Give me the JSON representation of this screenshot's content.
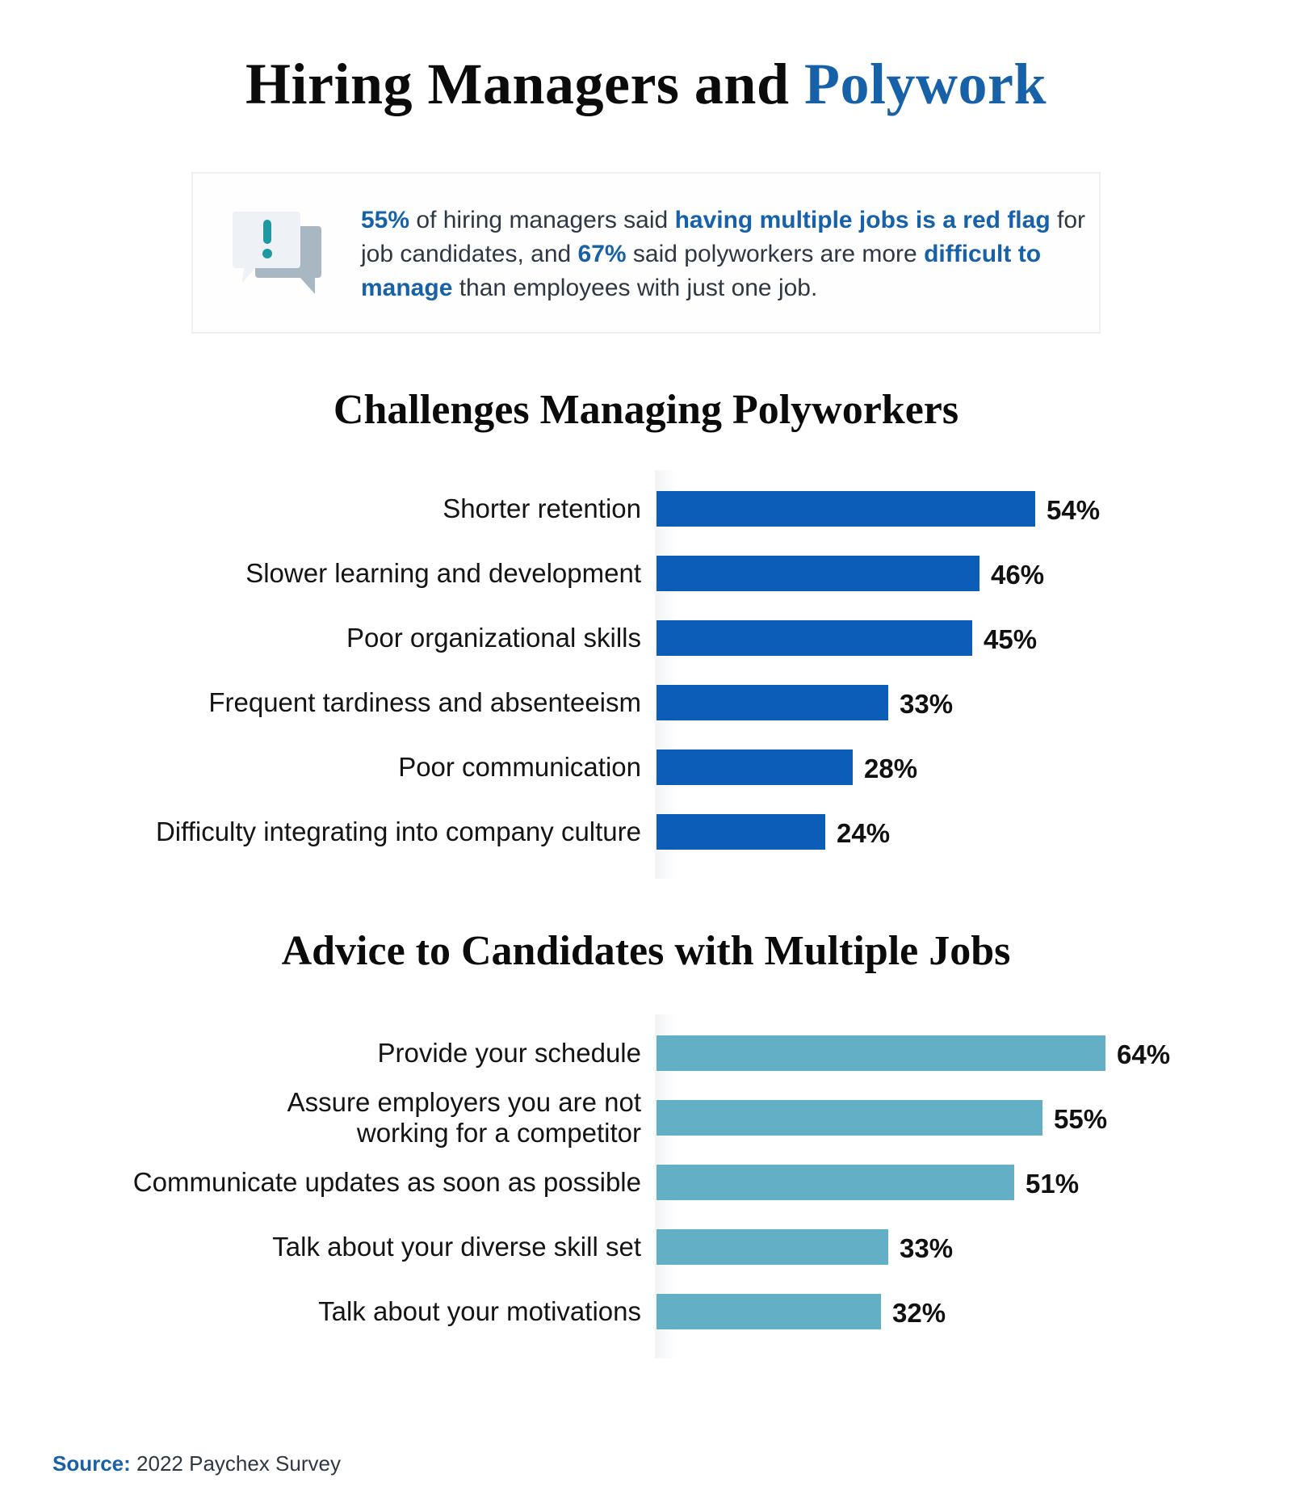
{
  "header": {
    "title_main": "Hiring Managers and ",
    "title_accent": "Polywork"
  },
  "summary": {
    "icon": "speech-bubbles-exclamation-icon",
    "segments": [
      {
        "text": "55%",
        "highlight": true
      },
      {
        "text": " of hiring managers said ",
        "highlight": false
      },
      {
        "text": "having multiple jobs is a red flag",
        "highlight": true
      },
      {
        "text": " for job candidates, and ",
        "highlight": false
      },
      {
        "text": "67%",
        "highlight": true
      },
      {
        "text": " said polyworkers are more ",
        "highlight": false
      },
      {
        "text": "difficult to manage",
        "highlight": true
      },
      {
        "text": " than employees with just one job.",
        "highlight": false
      }
    ]
  },
  "colors": {
    "accent_blue": "#1761A9",
    "bar_blue": "#0B5DB8",
    "bar_teal": "#62AFC6",
    "icon_teal": "#1D9AA0",
    "icon_grey": "#A9B7C3"
  },
  "chart_data": [
    {
      "type": "bar",
      "orientation": "horizontal",
      "title": "Challenges Managing Polyworkers",
      "categories": [
        "Shorter retention",
        "Slower learning and development",
        "Poor organizational skills",
        "Frequent tardiness and absenteeism",
        "Poor communication",
        "Difficulty integrating into company culture"
      ],
      "values": [
        54,
        46,
        45,
        33,
        28,
        24
      ],
      "value_labels": [
        "54%",
        "46%",
        "45%",
        "33%",
        "28%",
        "24%"
      ],
      "unit": "%",
      "color": "#0B5DB8",
      "xlabel": "",
      "ylabel": "",
      "grid": false,
      "legend": null
    },
    {
      "type": "bar",
      "orientation": "horizontal",
      "title": "Advice to Candidates with Multiple Jobs",
      "categories": [
        "Provide your schedule",
        "Assure employers you are not working for a competitor",
        "Communicate updates as soon as possible",
        "Talk about your diverse skill set",
        "Talk about your motivations"
      ],
      "category_lines": [
        [
          "Provide your schedule"
        ],
        [
          "Assure employers you are not",
          "working for a competitor"
        ],
        [
          "Communicate updates as soon as possible"
        ],
        [
          "Talk about your diverse skill set"
        ],
        [
          "Talk about your motivations"
        ]
      ],
      "values": [
        64,
        55,
        51,
        33,
        32
      ],
      "value_labels": [
        "64%",
        "55%",
        "51%",
        "33%",
        "32%"
      ],
      "unit": "%",
      "color": "#62AFC6",
      "xlabel": "",
      "ylabel": "",
      "grid": false,
      "legend": null
    }
  ],
  "footer": {
    "source_label": "Source:",
    "source_text": " 2022 Paychex Survey"
  }
}
